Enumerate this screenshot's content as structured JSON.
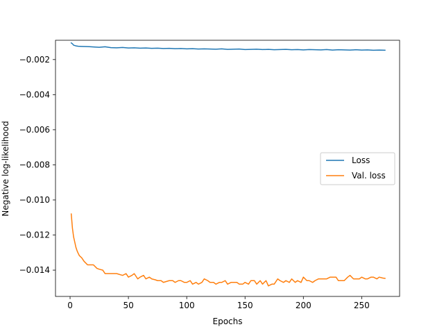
{
  "chart_data": {
    "type": "line",
    "title": "",
    "xlabel": "Epochs",
    "ylabel": "Negative log-likelihood",
    "xlim": [
      -12.5,
      282.5
    ],
    "ylim": [
      -0.0155,
      -0.0009
    ],
    "x_ticks": [
      {
        "value": 0,
        "label": "0"
      },
      {
        "value": 50,
        "label": "50"
      },
      {
        "value": 100,
        "label": "100"
      },
      {
        "value": 150,
        "label": "150"
      },
      {
        "value": 200,
        "label": "200"
      },
      {
        "value": 250,
        "label": "250"
      }
    ],
    "y_ticks": [
      {
        "value": -0.002,
        "label": "−0.002"
      },
      {
        "value": -0.004,
        "label": "−0.004"
      },
      {
        "value": -0.006,
        "label": "−0.006"
      },
      {
        "value": -0.008,
        "label": "−0.008"
      },
      {
        "value": -0.01,
        "label": "−0.010"
      },
      {
        "value": -0.012,
        "label": "−0.012"
      },
      {
        "value": -0.014,
        "label": "−0.014"
      }
    ],
    "grid": false,
    "legend": {
      "position": "center-right"
    },
    "series": [
      {
        "name": "Loss",
        "color": "#1f77b4",
        "x": [
          1,
          2,
          3,
          5,
          7,
          10,
          15,
          20,
          25,
          30,
          35,
          40,
          45,
          50,
          55,
          60,
          65,
          70,
          75,
          80,
          85,
          90,
          95,
          100,
          105,
          110,
          115,
          120,
          125,
          130,
          135,
          140,
          145,
          150,
          155,
          160,
          165,
          170,
          175,
          180,
          185,
          190,
          195,
          200,
          205,
          210,
          215,
          220,
          225,
          230,
          235,
          240,
          245,
          250,
          255,
          260,
          265,
          270
        ],
        "y": [
          -0.00105,
          -0.0011,
          -0.00118,
          -0.00122,
          -0.00124,
          -0.00125,
          -0.00126,
          -0.00128,
          -0.0013,
          -0.00127,
          -0.00132,
          -0.00133,
          -0.00131,
          -0.00134,
          -0.00133,
          -0.00135,
          -0.00134,
          -0.00136,
          -0.00135,
          -0.00137,
          -0.00136,
          -0.00138,
          -0.00137,
          -0.00139,
          -0.00138,
          -0.0014,
          -0.00139,
          -0.0014,
          -0.00141,
          -0.00139,
          -0.00142,
          -0.00141,
          -0.0014,
          -0.00143,
          -0.00142,
          -0.00141,
          -0.00143,
          -0.00142,
          -0.00144,
          -0.00143,
          -0.00142,
          -0.00144,
          -0.00143,
          -0.00145,
          -0.00143,
          -0.00144,
          -0.00145,
          -0.00143,
          -0.00146,
          -0.00144,
          -0.00145,
          -0.00146,
          -0.00144,
          -0.00146,
          -0.00145,
          -0.00147,
          -0.00146,
          -0.00147
        ]
      },
      {
        "name": "Val. loss",
        "color": "#ff7f0e",
        "x": [
          1,
          2,
          3,
          4,
          5,
          6,
          7,
          8,
          10,
          12,
          15,
          18,
          20,
          23,
          25,
          28,
          30,
          33,
          35,
          40,
          45,
          48,
          50,
          53,
          55,
          58,
          60,
          63,
          65,
          68,
          70,
          73,
          75,
          78,
          80,
          85,
          88,
          90,
          93,
          95,
          98,
          100,
          103,
          105,
          108,
          110,
          113,
          115,
          118,
          120,
          123,
          125,
          128,
          130,
          133,
          135,
          138,
          140,
          143,
          145,
          148,
          150,
          153,
          155,
          158,
          160,
          163,
          165,
          168,
          170,
          173,
          175,
          178,
          180,
          183,
          185,
          188,
          190,
          193,
          195,
          198,
          200,
          203,
          205,
          208,
          210,
          213,
          215,
          218,
          220,
          223,
          225,
          228,
          230,
          233,
          235,
          238,
          240,
          243,
          245,
          248,
          250,
          253,
          255,
          258,
          260,
          263,
          265,
          268,
          270
        ],
        "y": [
          -0.0108,
          -0.0116,
          -0.0121,
          -0.0124,
          -0.0127,
          -0.0129,
          -0.01305,
          -0.01318,
          -0.0133,
          -0.0135,
          -0.0137,
          -0.0137,
          -0.0137,
          -0.0139,
          -0.01395,
          -0.014,
          -0.0142,
          -0.0142,
          -0.0142,
          -0.0142,
          -0.0143,
          -0.0142,
          -0.0144,
          -0.0143,
          -0.0142,
          -0.0145,
          -0.0144,
          -0.0143,
          -0.0145,
          -0.0144,
          -0.0145,
          -0.01455,
          -0.0146,
          -0.0146,
          -0.0147,
          -0.0146,
          -0.0146,
          -0.0147,
          -0.0146,
          -0.0146,
          -0.0147,
          -0.0147,
          -0.0146,
          -0.0148,
          -0.0147,
          -0.0148,
          -0.0147,
          -0.0145,
          -0.0146,
          -0.0147,
          -0.0147,
          -0.0148,
          -0.0147,
          -0.0147,
          -0.0146,
          -0.0148,
          -0.0147,
          -0.0147,
          -0.0147,
          -0.0148,
          -0.0148,
          -0.0147,
          -0.0148,
          -0.0146,
          -0.0146,
          -0.0148,
          -0.0146,
          -0.0148,
          -0.0146,
          -0.0149,
          -0.0148,
          -0.0148,
          -0.0145,
          -0.0146,
          -0.0147,
          -0.0146,
          -0.0147,
          -0.0145,
          -0.0147,
          -0.0146,
          -0.0147,
          -0.0144,
          -0.0146,
          -0.0146,
          -0.0147,
          -0.0146,
          -0.0145,
          -0.0145,
          -0.0145,
          -0.0145,
          -0.0144,
          -0.0144,
          -0.0144,
          -0.0146,
          -0.0146,
          -0.0146,
          -0.0144,
          -0.0143,
          -0.0145,
          -0.0145,
          -0.0145,
          -0.0144,
          -0.0145,
          -0.0145,
          -0.0144,
          -0.0144,
          -0.0145,
          -0.0144,
          -0.01445,
          -0.01447
        ]
      }
    ]
  }
}
